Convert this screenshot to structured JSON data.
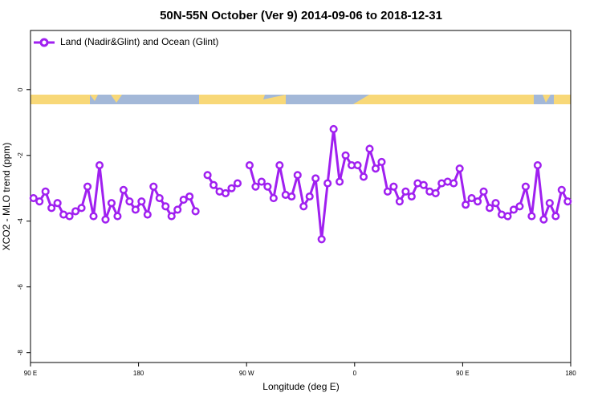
{
  "chart_data": {
    "type": "line",
    "title": "50N-55N October (Ver 9)   2014-09-06 to 2018-12-31",
    "x_label": "Longitude (deg E)",
    "y_label": "XCO2 - MLO trend (ppm)",
    "x": [
      92.5,
      97.5,
      102.5,
      107.5,
      112.5,
      117.5,
      122.5,
      127.5,
      132.5,
      137.5,
      142.5,
      147.5,
      152.5,
      157.5,
      162.5,
      167.5,
      172.5,
      177.5,
      182.5,
      187.5,
      192.5,
      197.5,
      202.5,
      207.5,
      212.5,
      217.5,
      222.5,
      227.5,
      232.5,
      237.5,
      242.5,
      247.5,
      252.5,
      257.5,
      262.5,
      267.5,
      272.5,
      277.5,
      282.5,
      287.5,
      292.5,
      297.5,
      302.5,
      307.5,
      312.5,
      317.5,
      322.5,
      327.5,
      332.5,
      337.5,
      342.5,
      347.5,
      352.5,
      357.5,
      362.5,
      367.5,
      372.5,
      377.5,
      382.5,
      387.5,
      392.5,
      397.5,
      402.5,
      407.5,
      412.5,
      417.5,
      422.5,
      427.5,
      432.5,
      437.5,
      442.5,
      447.5,
      452.5,
      457.5,
      462.5,
      467.5,
      472.5,
      477.5,
      482.5,
      487.5,
      492.5,
      497.5,
      502.5,
      507.5,
      512.5,
      517.5,
      522.5,
      527.5,
      532.5,
      537.5
    ],
    "series": [
      {
        "name": "Land (Nadir&Glint) and Ocean (Glint)",
        "color": "#a020f0",
        "values": [
          -3.3,
          -3.4,
          -3.1,
          -3.6,
          -3.45,
          -3.8,
          -3.85,
          -3.7,
          -3.6,
          -2.95,
          -3.85,
          -2.3,
          -3.95,
          -3.45,
          -3.85,
          -3.05,
          -3.4,
          -3.65,
          -3.4,
          -3.8,
          -2.95,
          -3.3,
          -3.55,
          -3.85,
          -3.65,
          -3.35,
          -3.25,
          -3.7,
          null,
          -2.6,
          -2.9,
          -3.1,
          -3.15,
          -3.0,
          -2.85,
          null,
          -2.3,
          -2.95,
          -2.8,
          -2.95,
          -3.3,
          -2.3,
          -3.2,
          -3.25,
          -2.6,
          -3.55,
          -3.25,
          -2.7,
          -4.55,
          -2.85,
          -1.2,
          -2.8,
          -2.0,
          -2.3,
          -2.3,
          -2.65,
          -1.8,
          -2.4,
          -2.2,
          -3.1,
          -2.95,
          -3.4,
          -3.1,
          -3.25,
          -2.85,
          -2.9,
          -3.1,
          -3.15,
          -2.85,
          -2.8,
          -2.85,
          -2.4,
          -3.5,
          -3.3,
          -3.4,
          -3.1,
          -3.6,
          -3.45,
          -3.8,
          -3.85,
          -3.65,
          -3.55,
          -2.95,
          -3.85,
          -2.3,
          -3.95,
          -3.45,
          -3.85,
          -3.05,
          -3.4
        ]
      }
    ],
    "xlim": [
      90,
      540
    ],
    "xticks": [
      {
        "value": 90,
        "label": "90 E"
      },
      180,
      {
        "value": 270,
        "label": "90 W"
      },
      {
        "value": 360,
        "label": "0"
      },
      {
        "value": 450,
        "label": "90 E"
      },
      {
        "value": 540,
        "label": "180"
      }
    ],
    "ylim": [
      -8.3,
      1.8
    ],
    "yticks": [
      -8,
      -6,
      -4,
      -2,
      0
    ],
    "legend": "top-left"
  }
}
